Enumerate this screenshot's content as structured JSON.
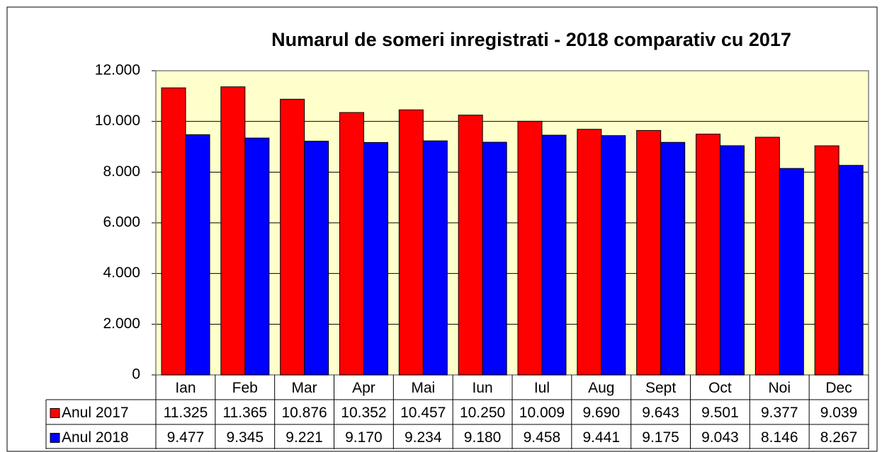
{
  "chart_data": {
    "type": "bar",
    "title": "Numarul de someri inregistrati - 2018 comparativ cu 2017",
    "categories": [
      "Ian",
      "Feb",
      "Mar",
      "Apr",
      "Mai",
      "Iun",
      "Iul",
      "Aug",
      "Sept",
      "Oct",
      "Noi",
      "Dec"
    ],
    "series": [
      {
        "name": "Anul 2017",
        "color": "#ff0000",
        "values": [
          11325,
          11365,
          10876,
          10352,
          10457,
          10250,
          10009,
          9690,
          9643,
          9501,
          9377,
          9039
        ],
        "value_labels": [
          "11.325",
          "11.365",
          "10.876",
          "10.352",
          "10.457",
          "10.250",
          "10.009",
          "9.690",
          "9.643",
          "9.501",
          "9.377",
          "9.039"
        ]
      },
      {
        "name": "Anul 2018",
        "color": "#0000ff",
        "values": [
          9477,
          9345,
          9221,
          9170,
          9234,
          9180,
          9458,
          9441,
          9175,
          9043,
          8146,
          8267
        ],
        "value_labels": [
          "9.477",
          "9.345",
          "9.221",
          "9.170",
          "9.234",
          "9.180",
          "9.458",
          "9.441",
          "9.175",
          "9.043",
          "8.146",
          "8.267"
        ]
      }
    ],
    "ylim": [
      0,
      12000
    ],
    "yticks": [
      0,
      {
        "value": 2000,
        "label": "2.000"
      },
      {
        "value": 4000,
        "label": "4.000"
      },
      {
        "value": 6000,
        "label": "6.000"
      },
      {
        "value": 8000,
        "label": "8.000"
      },
      {
        "value": 10000,
        "label": "10.000"
      },
      {
        "value": 12000,
        "label": "12.000"
      }
    ],
    "grid": true,
    "plot_background": "#ffffcc"
  }
}
